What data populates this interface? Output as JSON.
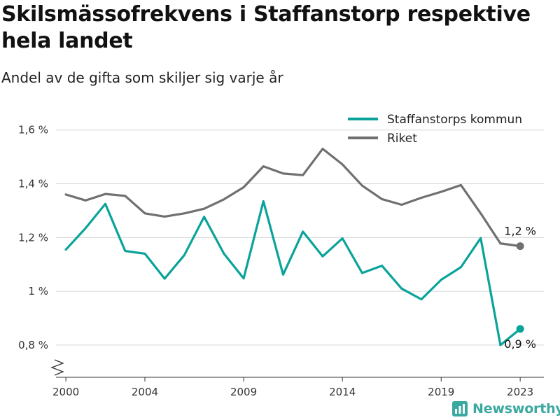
{
  "header": {
    "title": "Skilsmässofrekvens i Staffanstorp respektive hela landet",
    "subtitle": "Andel av de gifta som skiljer sig varje år"
  },
  "brand": {
    "name": "Newsworthy",
    "icon": "newsworthy-logo-icon",
    "color": "#3aa9a0"
  },
  "chart_data": {
    "type": "line",
    "title": "Skilsmässofrekvens i Staffanstorp respektive hela landet",
    "subtitle": "Andel av de gifta som skiljer sig varje år",
    "xlabel": "",
    "ylabel": "",
    "x": [
      2000,
      2001,
      2002,
      2003,
      2004,
      2005,
      2006,
      2007,
      2008,
      2009,
      2010,
      2011,
      2012,
      2013,
      2014,
      2015,
      2016,
      2017,
      2018,
      2019,
      2020,
      2021,
      2022,
      2023
    ],
    "xticks": [
      2000,
      2004,
      2009,
      2014,
      2019,
      2023
    ],
    "xtick_labels": [
      "2000",
      "2004",
      "2009",
      "2014",
      "2019",
      "2023"
    ],
    "xlim": [
      1999.5,
      2024.2
    ],
    "ylim": [
      0.68,
      1.68
    ],
    "yticks": [
      0.8,
      1.0,
      1.2,
      1.4,
      1.6
    ],
    "ytick_labels": [
      "0,8 %",
      "1 %",
      "1,2 %",
      "1,4 %",
      "1,6 %"
    ],
    "y_axis_break": true,
    "grid": true,
    "legend_position": "top-right",
    "series": [
      {
        "name": "Staffanstorps kommun",
        "color": "#0aa39a",
        "values": [
          1.155,
          1.235,
          1.325,
          1.15,
          1.14,
          1.047,
          1.135,
          1.277,
          1.14,
          1.048,
          1.335,
          1.062,
          1.222,
          1.13,
          1.197,
          1.068,
          1.095,
          1.01,
          0.97,
          1.043,
          1.09,
          1.198,
          0.8,
          0.86
        ],
        "end_label": "0,9 %"
      },
      {
        "name": "Riket",
        "color": "#707070",
        "values": [
          1.36,
          1.338,
          1.362,
          1.355,
          1.29,
          1.278,
          1.29,
          1.307,
          1.342,
          1.387,
          1.465,
          1.438,
          1.432,
          1.53,
          1.472,
          1.393,
          1.343,
          1.322,
          1.348,
          1.37,
          1.395,
          1.29,
          1.178,
          1.168
        ],
        "end_label": "1,2 %"
      }
    ]
  }
}
